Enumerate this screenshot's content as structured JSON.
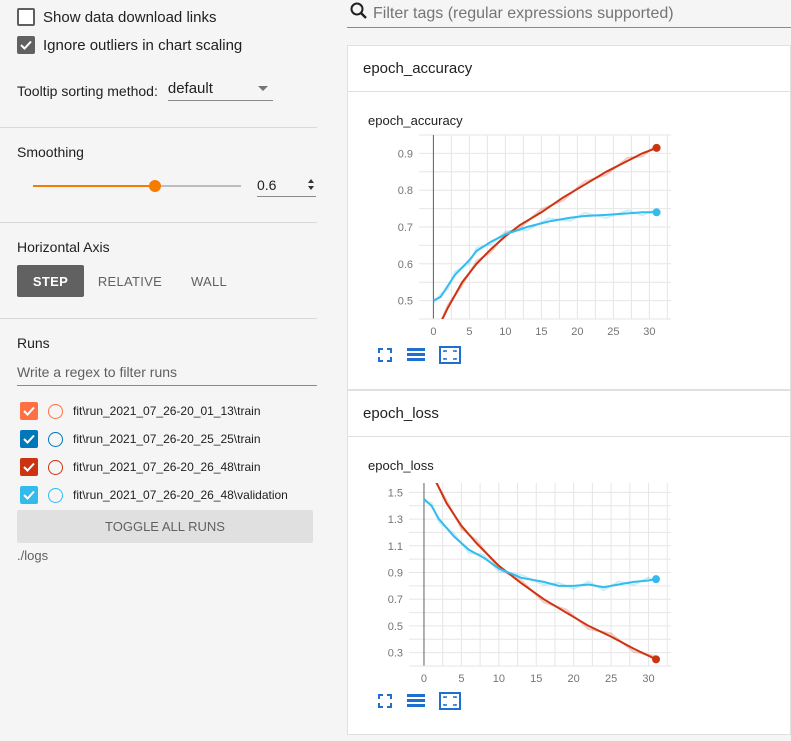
{
  "settings": {
    "show_download_links": {
      "label": "Show data download links",
      "checked": false
    },
    "ignore_outliers": {
      "label": "Ignore outliers in chart scaling",
      "checked": true
    },
    "tooltip_sorting_label": "Tooltip sorting method:",
    "tooltip_sorting_value": "default"
  },
  "smoothing": {
    "title": "Smoothing",
    "value": "0.6",
    "fraction": 0.6
  },
  "horizontal_axis": {
    "title": "Horizontal Axis",
    "options": [
      "STEP",
      "RELATIVE",
      "WALL"
    ],
    "selected": "STEP"
  },
  "runs": {
    "title": "Runs",
    "filter_placeholder": "Write a regex to filter runs",
    "items": [
      {
        "name": "fit\\run_2021_07_26-20_01_13\\train",
        "color": "#ff7043"
      },
      {
        "name": "fit\\run_2021_07_26-20_25_25\\train",
        "color": "#0077bb"
      },
      {
        "name": "fit\\run_2021_07_26-20_26_48\\train",
        "color": "#cc3311"
      },
      {
        "name": "fit\\run_2021_07_26-20_26_48\\validation",
        "color": "#33bbee"
      }
    ],
    "toggle_all_label": "TOGGLE ALL RUNS",
    "logdir": "./logs"
  },
  "search": {
    "placeholder": "Filter tags (regular expressions supported)"
  },
  "cards": [
    {
      "header": "epoch_accuracy",
      "chart_title": "epoch_accuracy"
    },
    {
      "header": "epoch_loss",
      "chart_title": "epoch_loss"
    }
  ],
  "chart_data": [
    {
      "type": "line",
      "title": "epoch_accuracy",
      "xlabel": "",
      "ylabel": "",
      "xlim": [
        -2,
        33
      ],
      "ylim": [
        0.45,
        0.95
      ],
      "xticks": [
        0,
        5,
        10,
        15,
        20,
        25,
        30
      ],
      "yticks": [
        0.5,
        0.6,
        0.7,
        0.8,
        0.9
      ],
      "grid": true,
      "series": [
        {
          "name": "fit\\run_2021_07_26-20_26_48\\train",
          "color": "#cc3311",
          "x": [
            0,
            2,
            4,
            6,
            8,
            10,
            12,
            15,
            18,
            21,
            24,
            27,
            29,
            31
          ],
          "y": [
            0.4,
            0.48,
            0.55,
            0.6,
            0.64,
            0.675,
            0.705,
            0.74,
            0.78,
            0.815,
            0.85,
            0.88,
            0.9,
            0.915
          ]
        },
        {
          "name": "fit\\run_2021_07_26-20_26_48\\validation",
          "color": "#33bbee",
          "x": [
            0,
            1,
            2,
            3,
            5,
            6,
            8,
            10,
            13,
            16,
            19,
            21,
            24,
            27,
            29,
            31
          ],
          "y": [
            0.5,
            0.51,
            0.54,
            0.57,
            0.61,
            0.635,
            0.66,
            0.68,
            0.7,
            0.715,
            0.725,
            0.73,
            0.733,
            0.737,
            0.74,
            0.74
          ]
        }
      ]
    },
    {
      "type": "line",
      "title": "epoch_loss",
      "xlabel": "",
      "ylabel": "",
      "xlim": [
        -2,
        33
      ],
      "ylim": [
        0.2,
        1.57
      ],
      "xticks": [
        0,
        5,
        10,
        15,
        20,
        25,
        30
      ],
      "yticks": [
        0.3,
        0.5,
        0.7,
        0.9,
        1.1,
        1.3,
        1.5
      ],
      "grid": true,
      "series": [
        {
          "name": "fit\\run_2021_07_26-20_26_48\\train",
          "color": "#cc3311",
          "x": [
            1,
            3,
            5,
            7,
            10,
            13,
            16,
            19,
            22,
            25,
            28,
            31
          ],
          "y": [
            1.65,
            1.42,
            1.25,
            1.12,
            0.95,
            0.82,
            0.7,
            0.6,
            0.5,
            0.42,
            0.33,
            0.25
          ]
        },
        {
          "name": "fit\\run_2021_07_26-20_26_48\\validation",
          "color": "#33bbee",
          "x": [
            0,
            1,
            2,
            4,
            6,
            8,
            10,
            13,
            16,
            18,
            20,
            22,
            24,
            26,
            28,
            30,
            31
          ],
          "y": [
            1.45,
            1.4,
            1.3,
            1.17,
            1.07,
            1.01,
            0.93,
            0.86,
            0.83,
            0.8,
            0.8,
            0.81,
            0.79,
            0.81,
            0.83,
            0.84,
            0.85
          ]
        }
      ]
    }
  ]
}
